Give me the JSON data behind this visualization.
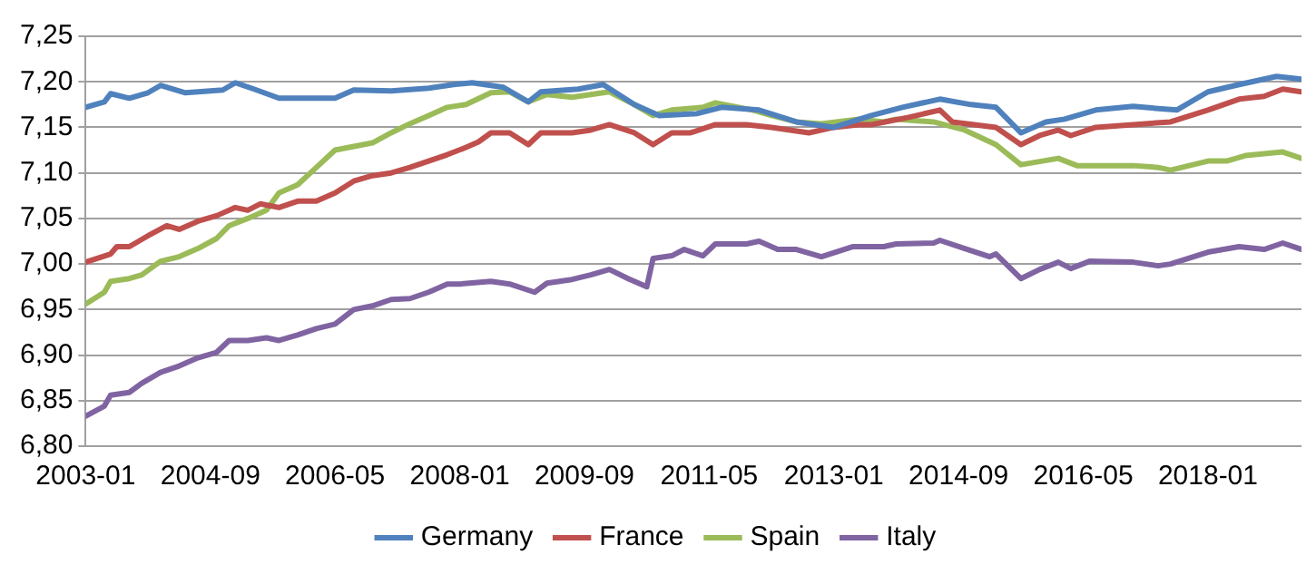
{
  "chart_data": {
    "type": "line",
    "xlim": [
      "2003-01",
      "2019-04"
    ],
    "xticks": [
      {
        "value": "2003-01",
        "label": "2003-01"
      },
      {
        "value": "2004-09",
        "label": "2004-09"
      },
      {
        "value": "2006-05",
        "label": "2006-05"
      },
      {
        "value": "2008-01",
        "label": "2008-01"
      },
      {
        "value": "2009-09",
        "label": "2009-09"
      },
      {
        "value": "2011-05",
        "label": "2011-05"
      },
      {
        "value": "2013-01",
        "label": "2013-01"
      },
      {
        "value": "2014-09",
        "label": "2014-09"
      },
      {
        "value": "2016-05",
        "label": "2016-05"
      },
      {
        "value": "2018-01",
        "label": "2018-01"
      }
    ],
    "ylim": [
      6.8,
      7.25
    ],
    "yticks": [
      {
        "value": 6.8,
        "label": "6,80"
      },
      {
        "value": 6.85,
        "label": "6,85"
      },
      {
        "value": 6.9,
        "label": "6,90"
      },
      {
        "value": 6.95,
        "label": "6,95"
      },
      {
        "value": 7.0,
        "label": "7,00"
      },
      {
        "value": 7.05,
        "label": "7,05"
      },
      {
        "value": 7.1,
        "label": "7,10"
      },
      {
        "value": 7.15,
        "label": "7,15"
      },
      {
        "value": 7.2,
        "label": "7,20"
      },
      {
        "value": 7.25,
        "label": "7,25"
      }
    ],
    "grid": "y",
    "legend": "bottom",
    "marker": "none",
    "line_style": "solid",
    "series": [
      {
        "name": "Germany",
        "color": "#4f81bd",
        "x": [
          "2003-01",
          "2003-04",
          "2003-05",
          "2003-08",
          "2003-11",
          "2004-01",
          "2004-05",
          "2004-11",
          "2005-01",
          "2005-04",
          "2005-08",
          "2006-05",
          "2006-08",
          "2007-02",
          "2007-08",
          "2007-12",
          "2008-03",
          "2008-08",
          "2008-12",
          "2009-02",
          "2009-08",
          "2009-12",
          "2010-05",
          "2010-09",
          "2011-03",
          "2011-07",
          "2012-01",
          "2012-07",
          "2013-01",
          "2013-07",
          "2013-12",
          "2014-04",
          "2014-06",
          "2014-11",
          "2015-03",
          "2015-07",
          "2015-11",
          "2016-02",
          "2016-07",
          "2017-01",
          "2017-08",
          "2018-01",
          "2018-06",
          "2018-12",
          "2019-04"
        ],
        "values": [
          7.172,
          7.178,
          7.187,
          7.182,
          7.188,
          7.196,
          7.188,
          7.191,
          7.199,
          7.192,
          7.182,
          7.182,
          7.191,
          7.19,
          7.193,
          7.197,
          7.199,
          7.194,
          7.178,
          7.189,
          7.192,
          7.197,
          7.175,
          7.163,
          7.165,
          7.172,
          7.169,
          7.156,
          7.15,
          7.163,
          7.172,
          7.178,
          7.181,
          7.175,
          7.172,
          7.144,
          7.156,
          7.159,
          7.169,
          7.173,
          7.169,
          7.189,
          7.197,
          7.206,
          7.203
        ]
      },
      {
        "name": "France",
        "color": "#c0504d",
        "x": [
          "2003-01",
          "2003-05",
          "2003-06",
          "2003-08",
          "2003-11",
          "2004-02",
          "2004-04",
          "2004-07",
          "2004-10",
          "2005-01",
          "2005-03",
          "2005-05",
          "2005-08",
          "2005-11",
          "2006-02",
          "2006-05",
          "2006-08",
          "2006-11",
          "2007-02",
          "2007-05",
          "2007-08",
          "2007-11",
          "2008-02",
          "2008-04",
          "2008-06",
          "2008-09",
          "2008-12",
          "2009-02",
          "2009-07",
          "2009-10",
          "2010-01",
          "2010-05",
          "2010-08",
          "2010-11",
          "2011-02",
          "2011-06",
          "2011-11",
          "2012-03",
          "2012-09",
          "2013-01",
          "2013-05",
          "2013-07",
          "2014-01",
          "2014-06",
          "2014-08",
          "2015-03",
          "2015-07",
          "2015-10",
          "2016-01",
          "2016-03",
          "2016-07",
          "2017-01",
          "2017-07",
          "2018-01",
          "2018-06",
          "2018-10",
          "2019-01",
          "2019-04"
        ],
        "values": [
          7.002,
          7.011,
          7.019,
          7.019,
          7.031,
          7.042,
          7.038,
          7.047,
          7.053,
          7.062,
          7.059,
          7.066,
          7.062,
          7.069,
          7.069,
          7.078,
          7.091,
          7.097,
          7.1,
          7.106,
          7.113,
          7.12,
          7.128,
          7.134,
          7.144,
          7.144,
          7.131,
          7.144,
          7.144,
          7.147,
          7.153,
          7.144,
          7.131,
          7.144,
          7.144,
          7.153,
          7.153,
          7.15,
          7.144,
          7.15,
          7.153,
          7.153,
          7.161,
          7.169,
          7.156,
          7.15,
          7.131,
          7.141,
          7.147,
          7.141,
          7.15,
          7.153,
          7.156,
          7.169,
          7.181,
          7.184,
          7.192,
          7.189
        ]
      },
      {
        "name": "Spain",
        "color": "#9bbb59",
        "x": [
          "2003-01",
          "2003-04",
          "2003-05",
          "2003-08",
          "2003-10",
          "2004-01",
          "2004-04",
          "2004-07",
          "2004-10",
          "2004-12",
          "2005-03",
          "2005-06",
          "2005-08",
          "2005-11",
          "2006-02",
          "2006-05",
          "2006-08",
          "2006-11",
          "2007-02",
          "2007-05",
          "2007-08",
          "2007-11",
          "2008-02",
          "2008-06",
          "2008-09",
          "2008-12",
          "2009-03",
          "2009-07",
          "2010-01",
          "2010-05",
          "2010-08",
          "2010-11",
          "2011-04",
          "2011-06",
          "2011-12",
          "2012-03",
          "2012-07",
          "2012-11",
          "2013-05",
          "2013-09",
          "2013-11",
          "2014-05",
          "2014-10",
          "2015-03",
          "2015-07",
          "2016-01",
          "2016-04",
          "2016-09",
          "2017-01",
          "2017-05",
          "2017-07",
          "2018-01",
          "2018-04",
          "2018-07",
          "2019-01",
          "2019-04"
        ],
        "values": [
          6.956,
          6.969,
          6.981,
          6.984,
          6.988,
          7.003,
          7.008,
          7.017,
          7.028,
          7.042,
          7.05,
          7.059,
          7.078,
          7.087,
          7.106,
          7.125,
          7.129,
          7.133,
          7.144,
          7.154,
          7.163,
          7.172,
          7.175,
          7.188,
          7.189,
          7.178,
          7.186,
          7.183,
          7.189,
          7.175,
          7.163,
          7.169,
          7.172,
          7.177,
          7.169,
          7.163,
          7.156,
          7.154,
          7.159,
          7.156,
          7.159,
          7.156,
          7.147,
          7.131,
          7.109,
          7.116,
          7.108,
          7.108,
          7.108,
          7.106,
          7.103,
          7.113,
          7.113,
          7.119,
          7.123,
          7.116
        ]
      },
      {
        "name": "Italy",
        "color": "#8064a2",
        "x": [
          "2003-01",
          "2003-04",
          "2003-05",
          "2003-08",
          "2003-10",
          "2004-01",
          "2004-04",
          "2004-07",
          "2004-10",
          "2004-12",
          "2005-03",
          "2005-06",
          "2005-08",
          "2005-11",
          "2006-02",
          "2006-05",
          "2006-08",
          "2006-11",
          "2007-02",
          "2007-05",
          "2007-08",
          "2007-11",
          "2008-01",
          "2008-06",
          "2008-09",
          "2009-01",
          "2009-03",
          "2009-07",
          "2009-10",
          "2010-01",
          "2010-04",
          "2010-07",
          "2010-08",
          "2010-11",
          "2011-01",
          "2011-04",
          "2011-06",
          "2011-11",
          "2012-01",
          "2012-04",
          "2012-07",
          "2012-11",
          "2013-04",
          "2013-09",
          "2013-11",
          "2014-05",
          "2014-06",
          "2014-10",
          "2015-02",
          "2015-03",
          "2015-07",
          "2015-10",
          "2016-01",
          "2016-03",
          "2016-06",
          "2017-01",
          "2017-05",
          "2017-07",
          "2018-01",
          "2018-06",
          "2018-10",
          "2019-01",
          "2019-04"
        ],
        "values": [
          6.833,
          6.844,
          6.856,
          6.859,
          6.869,
          6.881,
          6.888,
          6.897,
          6.903,
          6.916,
          6.916,
          6.919,
          6.916,
          6.922,
          6.929,
          6.934,
          6.95,
          6.954,
          6.961,
          6.962,
          6.969,
          6.978,
          6.978,
          6.981,
          6.978,
          6.969,
          6.979,
          6.983,
          6.988,
          6.994,
          6.984,
          6.975,
          7.006,
          7.009,
          7.016,
          7.009,
          7.022,
          7.022,
          7.025,
          7.016,
          7.016,
          7.008,
          7.019,
          7.019,
          7.022,
          7.023,
          7.026,
          7.017,
          7.008,
          7.011,
          6.984,
          6.994,
          7.002,
          6.995,
          7.003,
          7.002,
          6.998,
          7.0,
          7.013,
          7.019,
          7.016,
          7.023,
          7.016
        ]
      }
    ]
  }
}
